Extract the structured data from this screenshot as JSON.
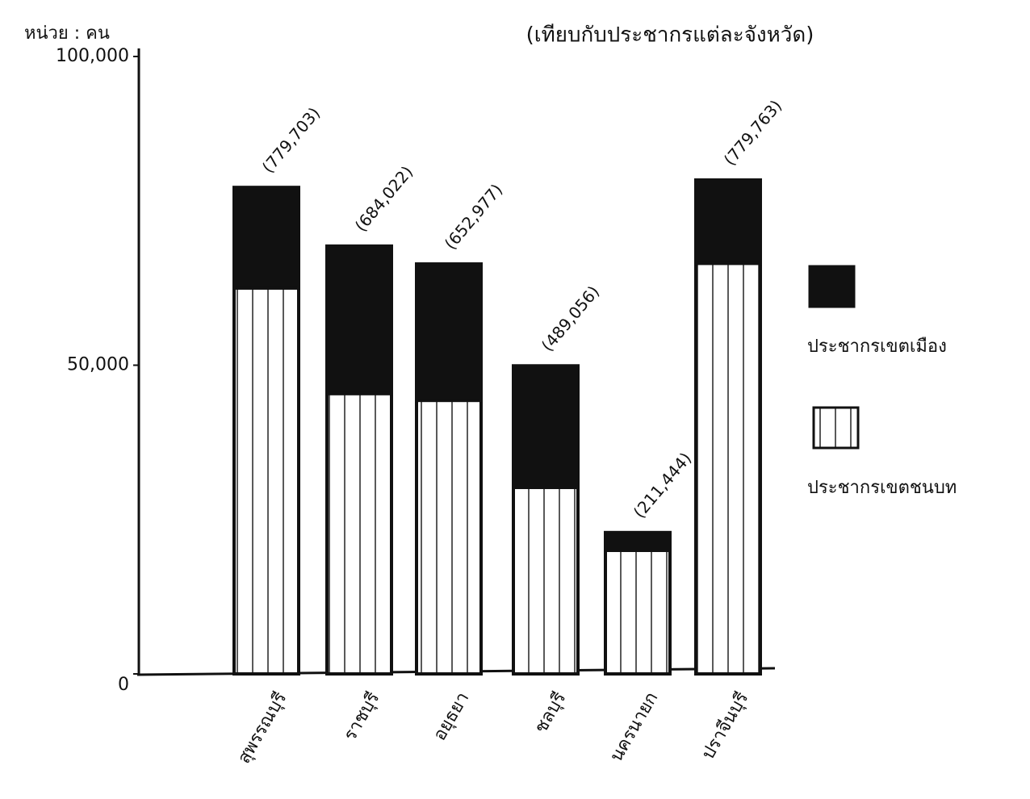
{
  "chart_data": {
    "type": "bar",
    "stacked": true,
    "title": "(เทียบกับประชากรแต่ละจังหวัด)",
    "y_label": "หน่วย : คน",
    "categories": [
      "สุพรรณบุรี",
      "ราชบุรี",
      "อยุธยา",
      "ชลบุรี",
      "นครนายก",
      "ปราจีนบุรี"
    ],
    "series": [
      {
        "name": "ประชากรเขตชนบท",
        "color": "#ffffff",
        "values": [
          62500,
          45400,
          44300,
          30200,
          20000,
          66500
        ]
      },
      {
        "name": "ประชากรเขตเมือง",
        "color": "#111111",
        "values": [
          16300,
          23900,
          22100,
          19700,
          2900,
          13500
        ]
      }
    ],
    "annotations": [
      "(779,703)",
      "(684,022)",
      "(652,977)",
      "(489,056)",
      "(211,444)",
      "(779,763)"
    ],
    "ylim": [
      0,
      100000
    ],
    "yticks": [
      0,
      {
        "value": 50000,
        "label": "50,000"
      },
      {
        "value": 100000,
        "label": "100,000"
      }
    ],
    "legend": "right"
  }
}
